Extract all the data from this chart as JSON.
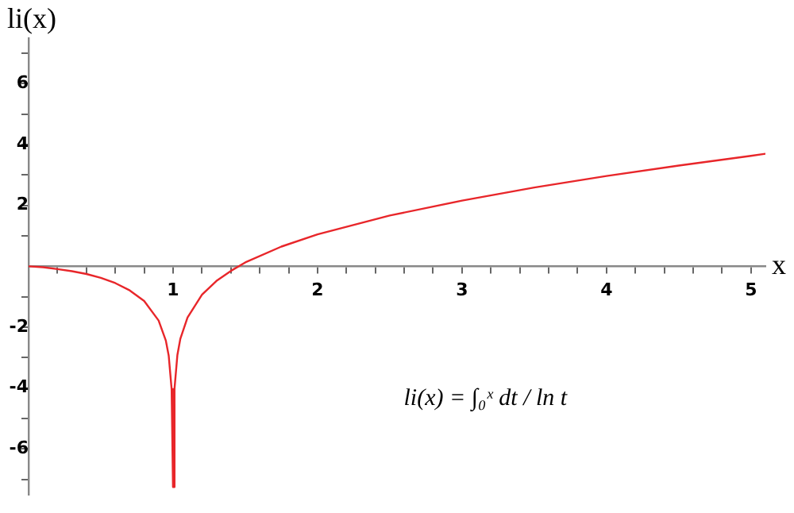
{
  "chart_data": {
    "type": "line",
    "ylabel": "li(x)",
    "xlabel": "x",
    "annotations": [
      "li(x) = ∫₀ˣ dt / ln t"
    ],
    "x": [
      0,
      0.1,
      0.2,
      0.3,
      0.4,
      0.5,
      0.6,
      0.7,
      0.8,
      0.9,
      0.95,
      0.97,
      0.99,
      0.9996,
      1,
      1.0004,
      1.01,
      1.03,
      1.05,
      1.1,
      1.2,
      1.3,
      1.4,
      1.5,
      1.75,
      2,
      2.5,
      3,
      3.5,
      4,
      4.5,
      5,
      5.1
    ],
    "series": [
      {
        "color": "#e8262a",
        "values": [
          0,
          -0.03,
          -0.09,
          -0.16,
          -0.25,
          -0.38,
          -0.55,
          -0.79,
          -1.14,
          -1.78,
          -2.44,
          -2.94,
          -4.03,
          -7.25,
          null,
          -7.25,
          -4.02,
          -2.91,
          -2.39,
          -1.68,
          -0.93,
          -0.48,
          -0.15,
          0.13,
          0.65,
          1.05,
          1.67,
          2.16,
          2.59,
          2.97,
          3.31,
          3.63,
          3.7
        ]
      }
    ],
    "xlim": [
      0,
      5.1
    ],
    "xticks": [
      {
        "value": 0.2,
        "label": null
      },
      {
        "value": 0.4,
        "label": null
      },
      {
        "value": 0.6,
        "label": null
      },
      {
        "value": 0.8,
        "label": null
      },
      1,
      {
        "value": 1.2,
        "label": null
      },
      {
        "value": 1.4,
        "label": null
      },
      {
        "value": 1.6,
        "label": null
      },
      {
        "value": 1.8,
        "label": null
      },
      2,
      {
        "value": 2.2,
        "label": null
      },
      {
        "value": 2.4,
        "label": null
      },
      {
        "value": 2.6,
        "label": null
      },
      {
        "value": 2.8,
        "label": null
      },
      3,
      {
        "value": 3.2,
        "label": null
      },
      {
        "value": 3.4,
        "label": null
      },
      {
        "value": 3.6,
        "label": null
      },
      {
        "value": 3.8,
        "label": null
      },
      4,
      {
        "value": 4.2,
        "label": null
      },
      {
        "value": 4.4,
        "label": null
      },
      {
        "value": 4.6,
        "label": null
      },
      {
        "value": 4.8,
        "label": null
      },
      5
    ],
    "ylim": [
      -7.5,
      7.5
    ],
    "yticks": [
      {
        "value": -7,
        "label": null
      },
      -6,
      {
        "value": -5,
        "label": null
      },
      -4,
      {
        "value": -3,
        "label": null
      },
      -2,
      {
        "value": -1,
        "label": null
      },
      {
        "value": 1,
        "label": null
      },
      2,
      {
        "value": 3,
        "label": null
      },
      4,
      {
        "value": 5,
        "label": null
      },
      6,
      {
        "value": 7,
        "label": null
      }
    ],
    "grid": false,
    "legend": false,
    "marker": "none",
    "line_style": "solid"
  }
}
